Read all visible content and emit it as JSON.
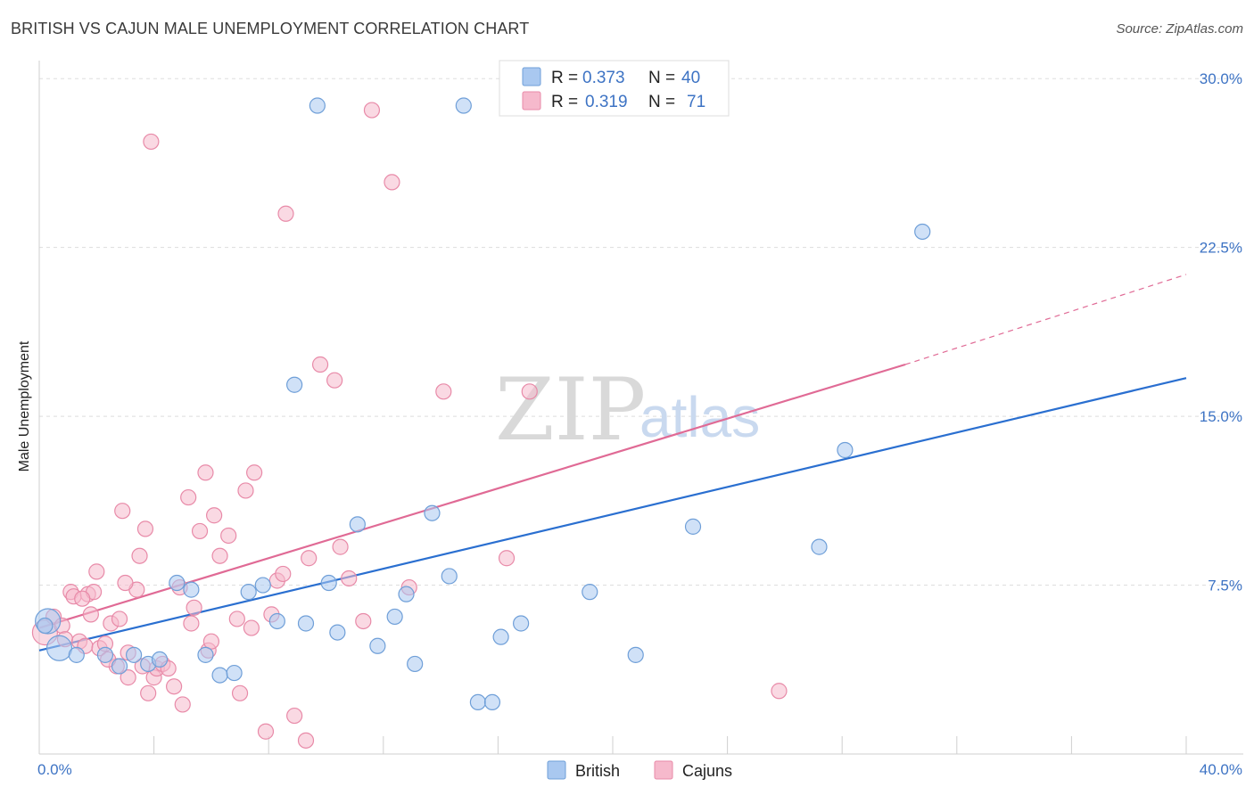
{
  "title": "BRITISH VS CAJUN MALE UNEMPLOYMENT CORRELATION CHART",
  "source": "Source: ZipAtlas.com",
  "watermark": {
    "part1": "ZIP",
    "part2": "atlas"
  },
  "colors": {
    "british_fill": "#a9c8f0",
    "british_stroke": "#6f9fd8",
    "british_line": "#2a6fd0",
    "cajun_fill": "#f6b9cc",
    "cajun_stroke": "#e88aa8",
    "cajun_line": "#e06a95",
    "tick_text": "#3d73c4",
    "grid": "#dddddd"
  },
  "legend": {
    "british": {
      "r_label": "R =",
      "r_value": "0.373",
      "n_label": "N =",
      "n_value": "40"
    },
    "cajun": {
      "r_label": "R =",
      "r_value": "0.319",
      "n_label": "N =",
      "n_value": "71"
    }
  },
  "chart_data": {
    "type": "scatter",
    "title": "BRITISH VS CAJUN MALE UNEMPLOYMENT CORRELATION CHART",
    "xlabel": "",
    "ylabel": "Male Unemployment",
    "xlim": [
      0,
      40
    ],
    "ylim": [
      0,
      30.8
    ],
    "x_tick_labels": [
      {
        "value": 0,
        "label": "0.0%"
      },
      {
        "value": 40,
        "label": "40.0%"
      }
    ],
    "y_tick_labels": [
      {
        "value": 7.5,
        "label": "7.5%"
      },
      {
        "value": 15,
        "label": "15.0%"
      },
      {
        "value": 22.5,
        "label": "22.5%"
      },
      {
        "value": 30,
        "label": "30.0%"
      }
    ],
    "series": [
      {
        "name": "British",
        "r": 0.373,
        "n": 40,
        "trend": {
          "x0": 0,
          "y0": 4.6,
          "x1": 40,
          "y1": 16.7
        },
        "points": [
          [
            0.3,
            5.9,
            "large"
          ],
          [
            0.7,
            4.7,
            "large"
          ],
          [
            1.3,
            4.4
          ],
          [
            2.3,
            4.4
          ],
          [
            2.8,
            3.9
          ],
          [
            3.3,
            4.4
          ],
          [
            3.8,
            4.0
          ],
          [
            4.2,
            4.2
          ],
          [
            4.8,
            7.6
          ],
          [
            5.3,
            7.3
          ],
          [
            5.8,
            4.4
          ],
          [
            6.3,
            3.5
          ],
          [
            6.8,
            3.6
          ],
          [
            7.3,
            7.2
          ],
          [
            7.8,
            7.5
          ],
          [
            8.3,
            5.9
          ],
          [
            8.9,
            16.4
          ],
          [
            9.3,
            5.8
          ],
          [
            9.7,
            28.8
          ],
          [
            10.1,
            7.6
          ],
          [
            10.4,
            5.4
          ],
          [
            11.1,
            10.2
          ],
          [
            11.8,
            4.8
          ],
          [
            12.4,
            6.1
          ],
          [
            12.8,
            7.1
          ],
          [
            13.1,
            4.0
          ],
          [
            13.7,
            10.7
          ],
          [
            14.3,
            7.9
          ],
          [
            14.8,
            28.8
          ],
          [
            15.3,
            2.3
          ],
          [
            15.8,
            2.3
          ],
          [
            16.1,
            5.2
          ],
          [
            16.8,
            5.8
          ],
          [
            19.2,
            7.2
          ],
          [
            20.8,
            4.4
          ],
          [
            22.8,
            10.1
          ],
          [
            27.2,
            9.2
          ],
          [
            28.1,
            13.5
          ],
          [
            30.8,
            23.2
          ],
          [
            0.2,
            5.7
          ]
        ]
      },
      {
        "name": "Cajuns",
        "r": 0.319,
        "n": 71,
        "trend": {
          "x0": 0,
          "y0": 5.6,
          "x1": 30.2,
          "y1": 17.3,
          "dash_x1": 40,
          "dash_y1": 21.3
        },
        "points": [
          [
            0.2,
            5.4,
            "large"
          ],
          [
            0.5,
            6.1
          ],
          [
            0.8,
            5.7
          ],
          [
            0.9,
            5.1
          ],
          [
            1.1,
            7.2
          ],
          [
            1.2,
            7.0
          ],
          [
            1.4,
            5.0
          ],
          [
            1.6,
            4.8
          ],
          [
            1.7,
            7.1
          ],
          [
            1.8,
            6.2
          ],
          [
            1.9,
            7.2
          ],
          [
            2.0,
            8.1
          ],
          [
            2.1,
            4.7
          ],
          [
            2.3,
            4.9
          ],
          [
            2.5,
            5.8
          ],
          [
            2.7,
            3.9
          ],
          [
            2.8,
            6.0
          ],
          [
            2.9,
            10.8
          ],
          [
            3.1,
            3.4
          ],
          [
            3.1,
            4.5
          ],
          [
            3.4,
            7.3
          ],
          [
            3.5,
            8.8
          ],
          [
            3.6,
            3.9
          ],
          [
            3.7,
            10.0
          ],
          [
            3.8,
            2.7
          ],
          [
            3.9,
            27.2
          ],
          [
            4.0,
            3.4
          ],
          [
            4.1,
            3.8
          ],
          [
            4.3,
            4.0
          ],
          [
            4.5,
            3.8
          ],
          [
            4.7,
            3.0
          ],
          [
            4.9,
            7.4
          ],
          [
            5.0,
            2.2
          ],
          [
            5.2,
            11.4
          ],
          [
            5.3,
            5.8
          ],
          [
            5.4,
            6.5
          ],
          [
            5.6,
            9.9
          ],
          [
            5.8,
            12.5
          ],
          [
            5.9,
            4.6
          ],
          [
            6.1,
            10.6
          ],
          [
            6.3,
            8.8
          ],
          [
            6.6,
            9.7
          ],
          [
            6.9,
            6.0
          ],
          [
            7.0,
            2.7
          ],
          [
            7.2,
            11.7
          ],
          [
            7.4,
            5.6
          ],
          [
            7.5,
            12.5
          ],
          [
            7.9,
            1.0
          ],
          [
            8.1,
            6.2
          ],
          [
            8.3,
            7.7
          ],
          [
            8.5,
            8.0
          ],
          [
            8.6,
            24.0
          ],
          [
            8.9,
            1.7
          ],
          [
            9.3,
            0.6
          ],
          [
            9.4,
            8.7
          ],
          [
            9.8,
            17.3
          ],
          [
            10.3,
            16.6
          ],
          [
            10.5,
            9.2
          ],
          [
            10.8,
            7.8
          ],
          [
            11.3,
            5.9
          ],
          [
            11.6,
            28.6
          ],
          [
            12.3,
            25.4
          ],
          [
            12.9,
            7.4
          ],
          [
            14.1,
            16.1
          ],
          [
            16.3,
            8.7
          ],
          [
            17.1,
            16.1
          ],
          [
            25.8,
            2.8
          ],
          [
            3.0,
            7.6
          ],
          [
            1.5,
            6.9
          ],
          [
            6.0,
            5.0
          ],
          [
            2.4,
            4.2
          ]
        ]
      }
    ]
  },
  "bottom_legend": {
    "british": "British",
    "cajuns": "Cajuns"
  }
}
